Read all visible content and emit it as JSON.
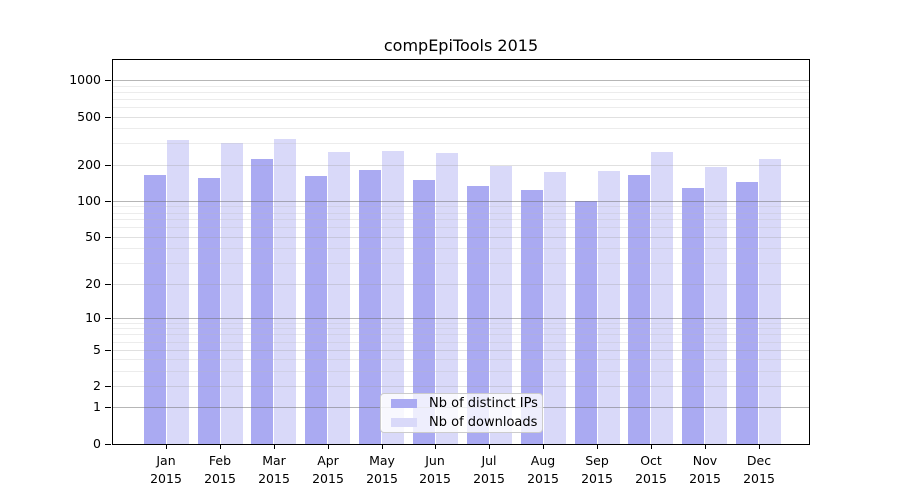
{
  "chart_data": {
    "type": "bar",
    "title": "compEpiTools 2015",
    "categories": [
      "Jan",
      "Feb",
      "Mar",
      "Apr",
      "May",
      "Jun",
      "Jul",
      "Aug",
      "Sep",
      "Oct",
      "Nov",
      "Dec"
    ],
    "year_label": "2015",
    "series": [
      {
        "name": "Nb of distinct IPs",
        "color": "#aaaaf2",
        "values": [
          165,
          156,
          223,
          162,
          181,
          150,
          132,
          124,
          100,
          165,
          128,
          144
        ]
      },
      {
        "name": "Nb of downloads",
        "color": "#d9d9f9",
        "values": [
          320,
          300,
          328,
          255,
          259,
          251,
          196,
          175,
          178,
          254,
          192,
          223
        ]
      }
    ],
    "y_axis": {
      "scale": "log1p",
      "ticks": [
        0,
        1,
        2,
        5,
        10,
        20,
        50,
        100,
        200,
        500,
        1000
      ],
      "decade_ticks": [
        1,
        10,
        100,
        1000
      ],
      "minor_ticks": [
        3,
        4,
        6,
        7,
        8,
        9,
        30,
        40,
        60,
        70,
        80,
        90,
        300,
        400,
        600,
        700,
        800,
        900
      ],
      "ylim": [
        0,
        1465
      ]
    },
    "legend": {
      "position": "lower-center",
      "entries": [
        "Nb of distinct IPs",
        "Nb of downloads"
      ]
    },
    "grid": true,
    "colors": {
      "decade_gridline": "rgba(110,110,110,0.5)",
      "mid_gridline": "rgba(160,160,160,0.32)",
      "minor_gridline": "rgba(185,185,185,0.28)",
      "axis": "#000000"
    }
  }
}
